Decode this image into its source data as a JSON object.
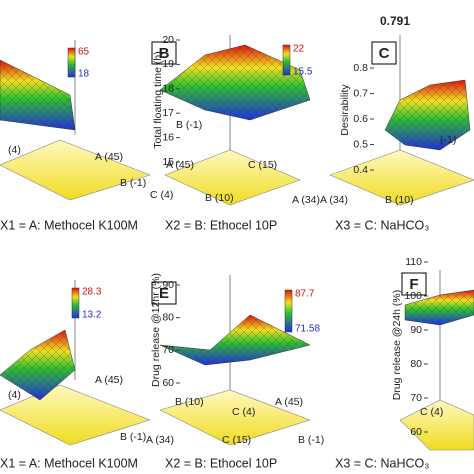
{
  "panels": [
    {
      "colorbar": [
        65,
        18
      ],
      "labels": [
        "(4)",
        "A (45)",
        "B (-1)"
      ],
      "caption": "X1 = A: Methocel K100M"
    },
    {
      "letter": "B",
      "y_title": "Total floating time (h)",
      "yticks": [
        15,
        16,
        17,
        18,
        19,
        20
      ],
      "colorbar": [
        22,
        15.5
      ],
      "labels": [
        "B (-1)",
        "A (45)",
        "C (15)",
        "C (4)",
        "B (10)",
        "A (34)"
      ],
      "caption": "X2 = B: Ethocel 10P"
    },
    {
      "letter": "C",
      "top_value": 0.791,
      "y_title": "Desirability",
      "yticks": [
        0.4,
        0.5,
        0.6,
        0.7,
        0.8
      ],
      "labels": [
        "(-1)",
        "A (34)",
        "B (10)"
      ],
      "caption": "X3 = C: NaHCO₃"
    },
    {
      "colorbar": [
        28.3,
        13.2
      ],
      "labels": [
        "(4)",
        "A (45)",
        "B (-1)"
      ],
      "caption": "X1 = A: Methocel K100M"
    },
    {
      "letter": "E",
      "y_title": "Drug release @12hr (%)",
      "yticks": [
        60,
        70,
        80,
        90
      ],
      "colorbar": [
        87.7,
        71.58
      ],
      "labels": [
        "B (10)",
        "C (4)",
        "A (45)",
        "A (34)",
        "C (15)",
        "B (-1)"
      ],
      "caption": "X2 = B: Ethocel 10P"
    },
    {
      "letter": "F",
      "y_title": "Drug release @24h (%)",
      "yticks": [
        60,
        70,
        80,
        90,
        100,
        110
      ],
      "labels": [
        "C (4)"
      ],
      "caption": "X3 = C: NaHCO₃"
    }
  ]
}
